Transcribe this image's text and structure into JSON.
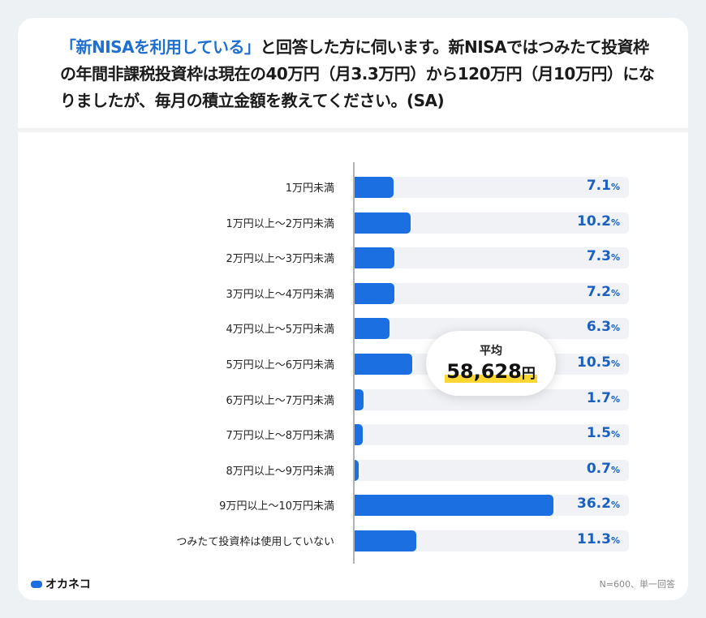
{
  "title": {
    "highlight": "「新NISAを利用している」",
    "rest": "と回答した方に伺います。新NISAではつみたて投資枠の年間非課税投資枠は現在の40万円（月3.3万円）から120万円（月10万円）になりましたが、毎月の積立金額を教えてください。(SA)"
  },
  "chart_data": {
    "type": "bar",
    "orientation": "horizontal",
    "categories": [
      "1万円未満",
      "1万円以上～2万円未満",
      "2万円以上～3万円未満",
      "3万円以上～4万円未満",
      "4万円以上～5万円未満",
      "5万円以上～6万円未満",
      "6万円以上～7万円未満",
      "7万円以上～8万円未満",
      "8万円以上～9万円未満",
      "9万円以上～10万円未満",
      "つみたて投資枠は使用していない"
    ],
    "values": [
      7.1,
      10.2,
      7.3,
      7.2,
      6.3,
      10.5,
      1.7,
      1.5,
      0.7,
      36.2,
      11.3
    ],
    "value_labels": [
      "7.1",
      "10.2",
      "7.3",
      "7.2",
      "6.3",
      "10.5",
      "1.7",
      "1.5",
      "0.7",
      "36.2",
      "11.3"
    ],
    "unit": "%",
    "xlim": [
      0,
      50
    ],
    "bar_color": "#1c6fe0",
    "track_color": "#f0f2f5",
    "value_color": "#1b5fbf"
  },
  "average": {
    "label": "平均",
    "value": "58,628",
    "unit": "円"
  },
  "footer": {
    "logo": "オカネコ",
    "note": "N=600、単一回答"
  }
}
